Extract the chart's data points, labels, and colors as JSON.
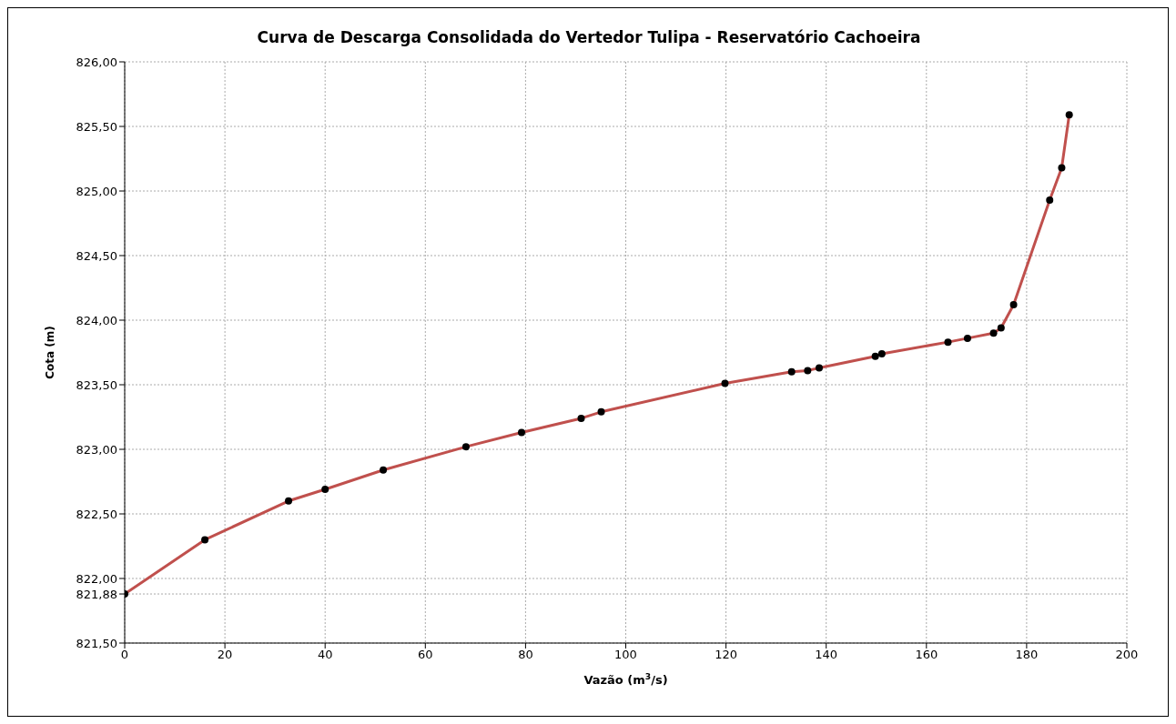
{
  "chart_data": {
    "type": "line",
    "title": "Curva de Descarga Consolidada do Vertedor Tulipa - Reservatório Cachoeira",
    "xlabel": "Vazão (m$^{3}$/s)",
    "ylabel": "Cota (m)",
    "x": [
      0,
      16.0,
      32.7,
      40.0,
      51.6,
      68.1,
      79.2,
      91.1,
      95.1,
      119.8,
      133.1,
      136.3,
      138.6,
      149.8,
      151.1,
      164.3,
      168.2,
      173.4,
      174.9,
      177.4,
      184.6,
      187.0,
      188.5
    ],
    "series": [
      {
        "color": "#c0504d",
        "values": [
          821.88,
          822.3,
          822.6,
          822.69,
          822.84,
          823.02,
          823.13,
          823.24,
          823.29,
          823.51,
          823.6,
          823.61,
          823.63,
          823.72,
          823.74,
          823.83,
          823.86,
          823.9,
          823.94,
          824.12,
          824.93,
          825.18,
          825.59
        ]
      }
    ],
    "xlim": [
      0,
      200
    ],
    "xticks": [
      0,
      20,
      40,
      60,
      80,
      100,
      120,
      140,
      160,
      180,
      200
    ],
    "ylim": [
      821.5,
      826
    ],
    "yticks": [
      {
        "value": 821.5,
        "label": "821,50"
      },
      {
        "value": 821.88,
        "label": "821,88"
      },
      {
        "value": 822,
        "label": "822,00"
      },
      {
        "value": 822.5,
        "label": "822,50"
      },
      {
        "value": 823,
        "label": "823,00"
      },
      {
        "value": 823.5,
        "label": "823,50"
      },
      {
        "value": 824,
        "label": "824,00"
      },
      {
        "value": 824.5,
        "label": "824,50"
      },
      {
        "value": 825,
        "label": "825,00"
      },
      {
        "value": 825.5,
        "label": "825,50"
      },
      {
        "value": 826,
        "label": "826,00"
      }
    ],
    "grid": true,
    "marker": "circle",
    "line_style": "solid",
    "legend": false
  }
}
